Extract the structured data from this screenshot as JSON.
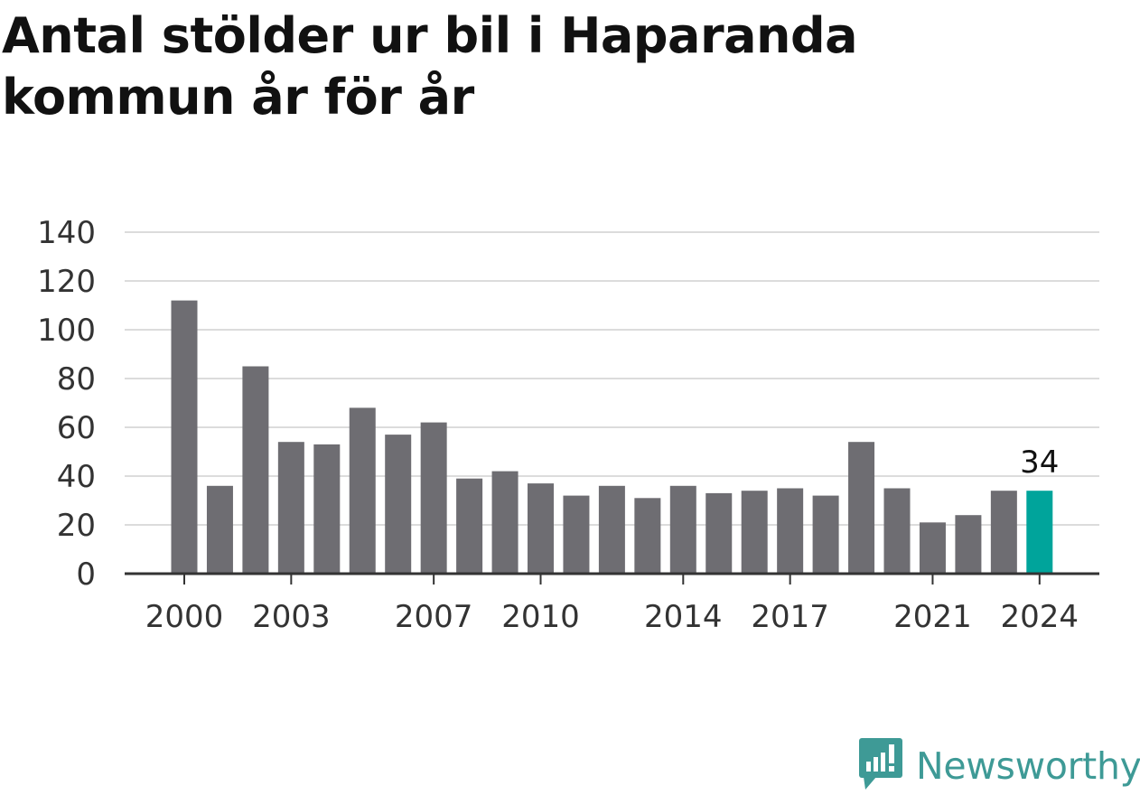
{
  "title": "Antal stölder ur bil i Haparanda kommun år för år",
  "brand": {
    "name": "Newsworthy",
    "icon": "newsworthy-logo-icon",
    "color": "#3e9a96"
  },
  "colors": {
    "bar": "#6e6d72",
    "highlight": "#00a49b",
    "grid": "#dcdcdc",
    "axis": "#333333"
  },
  "chart_data": {
    "type": "bar",
    "title": "Antal stölder ur bil i Haparanda kommun år för år",
    "xlabel": "",
    "ylabel": "",
    "categories": [
      "2000",
      "2001",
      "2002",
      "2003",
      "2004",
      "2005",
      "2006",
      "2007",
      "2008",
      "2009",
      "2010",
      "2011",
      "2012",
      "2013",
      "2014",
      "2015",
      "2016",
      "2017",
      "2018",
      "2019",
      "2020",
      "2021",
      "2022",
      "2023",
      "2024"
    ],
    "values": [
      112,
      36,
      85,
      54,
      53,
      68,
      57,
      62,
      39,
      42,
      37,
      32,
      36,
      31,
      36,
      33,
      34,
      35,
      32,
      54,
      35,
      21,
      24,
      34,
      34
    ],
    "ylim": [
      0,
      140
    ],
    "yticks": [
      "0",
      "20",
      "40",
      "60",
      "80",
      "100",
      "120",
      "140"
    ],
    "xtick_labels": [
      "2000",
      "2003",
      "2007",
      "2010",
      "2014",
      "2017",
      "2021",
      "2024"
    ],
    "highlight_category": "2024",
    "highlight_label": "34",
    "grid": true,
    "legend": "none"
  }
}
